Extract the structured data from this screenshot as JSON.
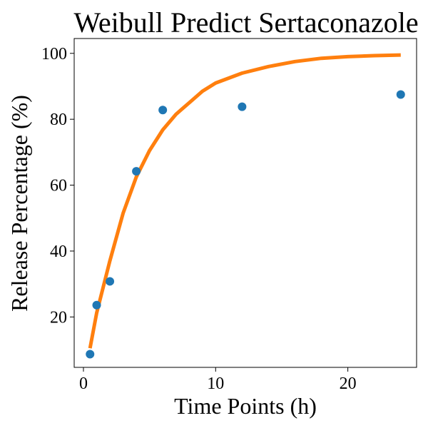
{
  "chart_data": {
    "type": "scatter",
    "title": "Weibull Predict Sertaconazole",
    "xlabel": "Time Points (h)",
    "ylabel": "Release Percentage (%)",
    "xlim": [
      -0.7,
      25.2
    ],
    "ylim": [
      4.7,
      104.5
    ],
    "xticks": [
      0,
      10,
      20
    ],
    "yticks": [
      20,
      40,
      60,
      80,
      100
    ],
    "grid": false,
    "series": [
      {
        "kind": "scatter",
        "color": "#1f77b4",
        "points": [
          {
            "x": 0.5,
            "y": 8.7
          },
          {
            "x": 1,
            "y": 23.6
          },
          {
            "x": 2,
            "y": 30.8
          },
          {
            "x": 4,
            "y": 64.2
          },
          {
            "x": 6,
            "y": 82.8
          },
          {
            "x": 12,
            "y": 83.8
          },
          {
            "x": 24,
            "y": 87.5
          }
        ]
      },
      {
        "kind": "line",
        "color": "#ff7f0e",
        "points": [
          {
            "x": 0.5,
            "y": 10.5
          },
          {
            "x": 1,
            "y": 21.2
          },
          {
            "x": 2,
            "y": 37.0
          },
          {
            "x": 3,
            "y": 51.5
          },
          {
            "x": 4,
            "y": 62.5
          },
          {
            "x": 5,
            "y": 70.5
          },
          {
            "x": 6,
            "y": 76.8
          },
          {
            "x": 7,
            "y": 81.5
          },
          {
            "x": 8,
            "y": 85.0
          },
          {
            "x": 9,
            "y": 88.5
          },
          {
            "x": 10,
            "y": 91.0
          },
          {
            "x": 12,
            "y": 94.0
          },
          {
            "x": 14,
            "y": 96.0
          },
          {
            "x": 16,
            "y": 97.5
          },
          {
            "x": 18,
            "y": 98.5
          },
          {
            "x": 20,
            "y": 99.0
          },
          {
            "x": 22,
            "y": 99.3
          },
          {
            "x": 24,
            "y": 99.5
          }
        ]
      }
    ]
  }
}
